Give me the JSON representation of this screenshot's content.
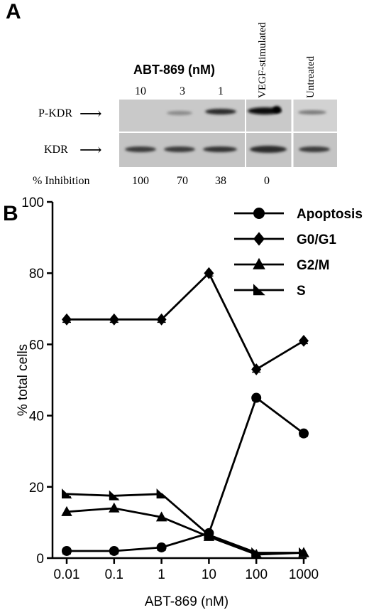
{
  "panel_a": {
    "letter": "A",
    "drug_header": "ABT-869 (nM)",
    "concentrations": [
      "10",
      "3",
      "1"
    ],
    "lane_labels": [
      "VEGF-stimulated",
      "Untreated"
    ],
    "rows": [
      {
        "label": "P-KDR"
      },
      {
        "label": "KDR"
      }
    ],
    "arrow": "⟶",
    "inhibition_label": "% Inhibition",
    "inhibition_values": [
      "100",
      "70",
      "38",
      "0"
    ]
  },
  "panel_b": {
    "letter": "B"
  },
  "colors": {
    "ink": "#000000",
    "blot_bg": "#c4c4c4",
    "band": "#1a1a1a"
  },
  "chart_data": {
    "type": "line",
    "x_scale": "log",
    "x": [
      0.01,
      0.1,
      1,
      10,
      100,
      1000
    ],
    "xticklabels": [
      "0.01",
      "0.1",
      "1",
      "10",
      "100",
      "1000"
    ],
    "xlabel": "ABT-869 (nM)",
    "ylabel": "% total cells",
    "ylim": [
      0,
      100
    ],
    "yticks": [
      0,
      20,
      40,
      60,
      80,
      100
    ],
    "legend_position": "top-right",
    "series": [
      {
        "name": "Apoptosis",
        "marker": "circle",
        "values": [
          2,
          2,
          3,
          7,
          45,
          35
        ]
      },
      {
        "name": "G0/G1",
        "marker": "diamond",
        "values": [
          67,
          67,
          67,
          80,
          53,
          61
        ]
      },
      {
        "name": "G2/M",
        "marker": "triangle",
        "values": [
          13,
          14,
          11.5,
          6,
          1,
          1.5
        ]
      },
      {
        "name": "S",
        "marker": "right-triangle",
        "values": [
          18,
          17.5,
          18,
          6.5,
          1.5,
          1.5
        ]
      }
    ]
  }
}
